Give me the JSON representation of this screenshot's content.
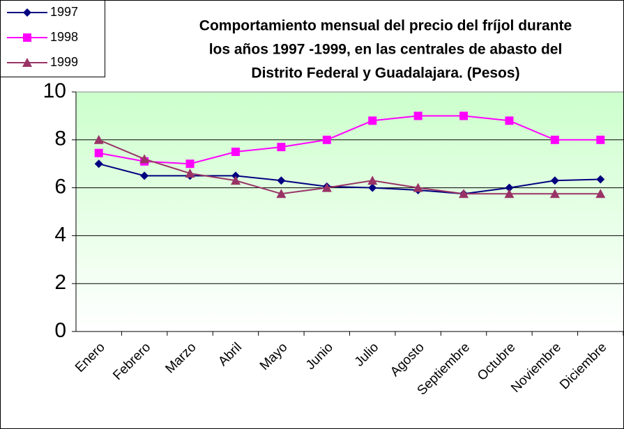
{
  "chart_data": {
    "type": "line",
    "title": [
      "Comportamiento mensual del precio del fríjol durante",
      "los años 1997 -1999, en las centrales de abasto del",
      "Distrito Federal y Guadalajara. (Pesos)"
    ],
    "categories": [
      "Enero",
      "Febrero",
      "Marzo",
      "Abril",
      "Mayo",
      "Junio",
      "Julio",
      "Agosto",
      "Septiembre",
      "Octubre",
      "Noviembre",
      "Diciembre"
    ],
    "series": [
      {
        "name": "1997",
        "color": "#000080",
        "marker": "diamond",
        "values": [
          7.0,
          6.5,
          6.5,
          6.5,
          6.3,
          6.05,
          6.0,
          5.9,
          5.75,
          6.0,
          6.3,
          6.35
        ]
      },
      {
        "name": "1998",
        "color": "#ff00ff",
        "marker": "square",
        "values": [
          7.45,
          7.1,
          7.0,
          7.5,
          7.7,
          8.0,
          8.8,
          9.0,
          9.0,
          8.8,
          8.0,
          8.0
        ]
      },
      {
        "name": "1999",
        "color": "#993366",
        "marker": "triangle",
        "values": [
          8.0,
          7.2,
          6.6,
          6.3,
          5.75,
          6.0,
          6.3,
          6.0,
          5.75,
          5.75,
          5.75,
          5.75
        ]
      }
    ],
    "ylim": [
      0,
      10
    ],
    "yticks": [
      0,
      2,
      4,
      6,
      8,
      10
    ],
    "grid": true,
    "legend": "top-left"
  }
}
